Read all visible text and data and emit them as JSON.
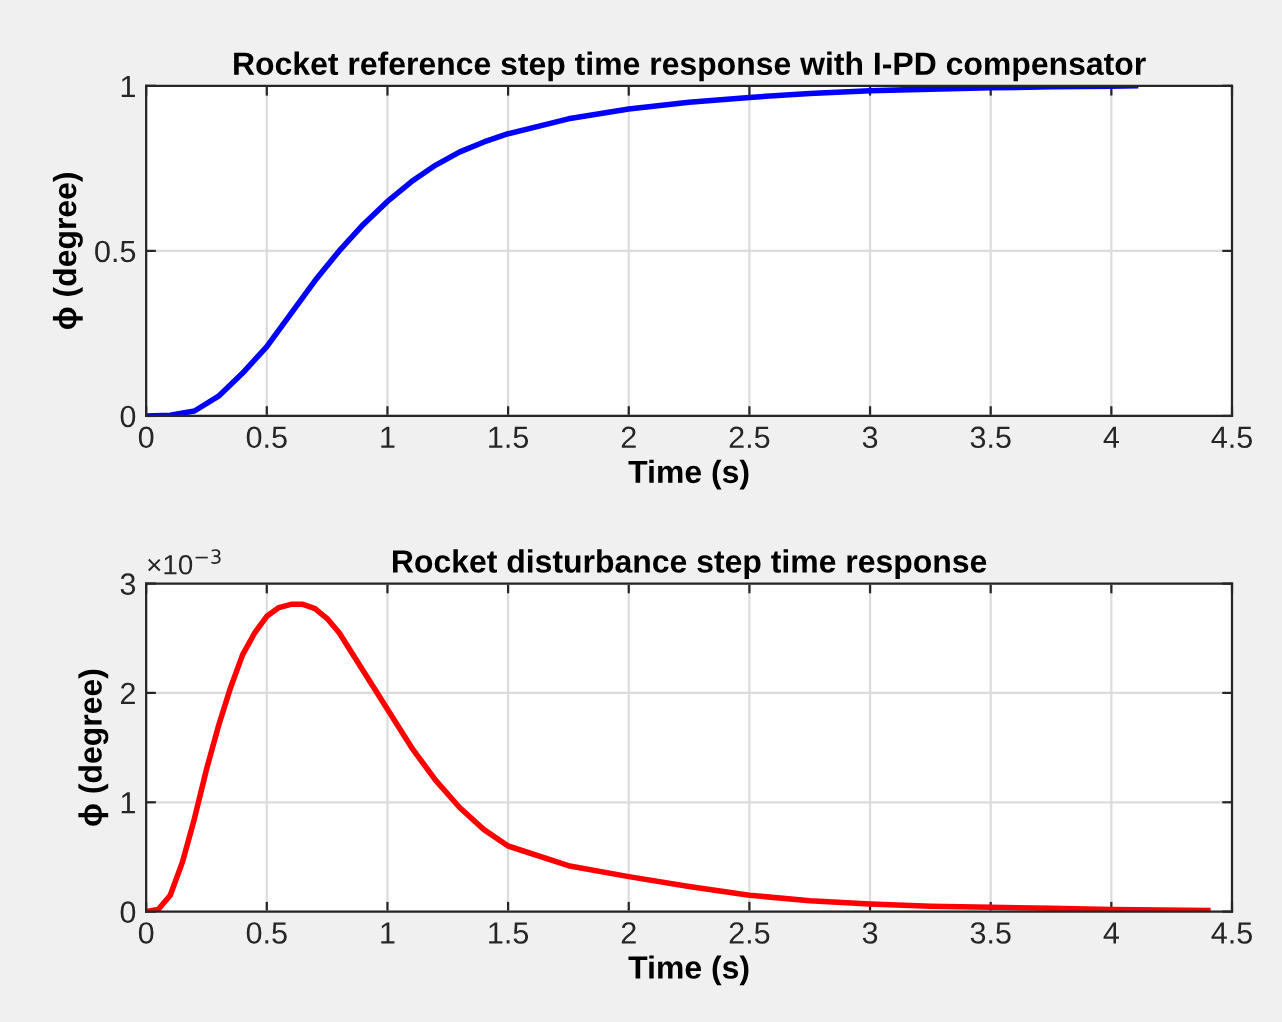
{
  "chart_data": [
    {
      "type": "line",
      "title": "Rocket reference step time response with I-PD compensator",
      "xlabel": "Time (s)",
      "ylabel": "ϕ (degree)",
      "x": [
        0,
        0.1,
        0.2,
        0.3,
        0.4,
        0.5,
        0.6,
        0.7,
        0.8,
        0.9,
        1.0,
        1.1,
        1.2,
        1.3,
        1.4,
        1.5,
        1.75,
        2,
        2.25,
        2.5,
        2.75,
        3,
        3.25,
        3.5,
        3.75,
        4,
        4.1
      ],
      "series": [
        {
          "color": "#0000ff",
          "values": [
            0,
            0.002,
            0.015,
            0.06,
            0.13,
            0.21,
            0.31,
            0.41,
            0.5,
            0.58,
            0.65,
            0.71,
            0.76,
            0.8,
            0.83,
            0.855,
            0.9,
            0.93,
            0.95,
            0.965,
            0.977,
            0.985,
            0.99,
            0.994,
            0.997,
            0.999,
            1.0
          ]
        }
      ],
      "xlim": [
        0,
        4.5
      ],
      "xticks": [
        0,
        0.5,
        1,
        1.5,
        2,
        2.5,
        3,
        3.5,
        4,
        4.5
      ],
      "ylim": [
        0,
        1
      ],
      "yticks": [
        0,
        0.5,
        1
      ],
      "grid": true
    },
    {
      "type": "line",
      "title": "Rocket disturbance step time response",
      "xlabel": "Time (s)",
      "ylabel": "ϕ (degree)",
      "annotations": [
        "×10$^{−3}$"
      ],
      "x": [
        0,
        0.05,
        0.1,
        0.15,
        0.2,
        0.25,
        0.3,
        0.35,
        0.4,
        0.45,
        0.5,
        0.55,
        0.6,
        0.65,
        0.7,
        0.75,
        0.8,
        0.9,
        1.0,
        1.1,
        1.2,
        1.3,
        1.4,
        1.5,
        1.75,
        2,
        2.25,
        2.5,
        2.75,
        3,
        3.25,
        3.5,
        3.75,
        4,
        4.4
      ],
      "series": [
        {
          "color": "#ff0000",
          "values": [
            0,
            0.02,
            0.15,
            0.45,
            0.85,
            1.3,
            1.7,
            2.05,
            2.35,
            2.55,
            2.7,
            2.78,
            2.81,
            2.81,
            2.77,
            2.68,
            2.55,
            2.2,
            1.85,
            1.5,
            1.2,
            0.95,
            0.75,
            0.6,
            0.42,
            0.32,
            0.23,
            0.15,
            0.1,
            0.07,
            0.05,
            0.04,
            0.03,
            0.02,
            0.01
          ]
        }
      ],
      "xlim": [
        0,
        4.5
      ],
      "xticks": [
        0,
        0.5,
        1,
        1.5,
        2,
        2.5,
        3,
        3.5,
        4,
        4.5
      ],
      "ylim": [
        0,
        3
      ],
      "yticks": [
        0,
        1,
        2,
        3
      ],
      "grid": true
    }
  ]
}
